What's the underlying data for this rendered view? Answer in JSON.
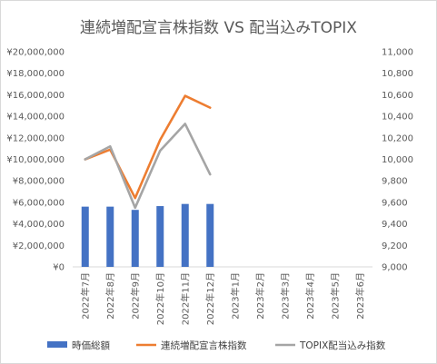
{
  "chart_data": {
    "type": "bar",
    "title": "連続増配宣言株指数 VS 配当込みTOPIX",
    "categories": [
      "2022年7月",
      "2022年8月",
      "2022年9月",
      "2022年10月",
      "2022年11月",
      "2022年12月",
      "2023年1月",
      "2023年2月",
      "2023年3月",
      "2023年4月",
      "2023年5月",
      "2023年6月"
    ],
    "y_left": {
      "ylim": [
        0,
        20000000
      ],
      "ticks": [
        "¥0",
        "¥2,000,000",
        "¥4,000,000",
        "¥6,000,000",
        "¥8,000,000",
        "¥10,000,000",
        "¥12,000,000",
        "¥14,000,000",
        "¥16,000,000",
        "¥18,000,000",
        "¥20,000,000"
      ]
    },
    "y_right": {
      "ylim": [
        9000,
        11000
      ],
      "ticks": [
        "9,000",
        "9,200",
        "9,400",
        "9,600",
        "9,800",
        "10,000",
        "10,200",
        "10,400",
        "10,600",
        "10,800",
        "11,000"
      ]
    },
    "series": [
      {
        "name": "時価総額",
        "type": "bar",
        "axis": "left",
        "color": "#4472c4",
        "values": [
          5600000,
          5600000,
          5300000,
          5650000,
          5850000,
          5850000,
          null,
          null,
          null,
          null,
          null,
          null
        ]
      },
      {
        "name": "連続増配宣言株指数",
        "type": "line",
        "axis": "right",
        "color": "#ed7d31",
        "values": [
          10000,
          10090,
          9640,
          10180,
          10590,
          10480,
          null,
          null,
          null,
          null,
          null,
          null
        ]
      },
      {
        "name": "TOPIX配当込み指数",
        "type": "line",
        "axis": "right",
        "color": "#a5a5a5",
        "values": [
          10000,
          10120,
          9550,
          10080,
          10330,
          9860,
          null,
          null,
          null,
          null,
          null,
          null
        ]
      }
    ],
    "grid": false,
    "legend": "bottom"
  }
}
